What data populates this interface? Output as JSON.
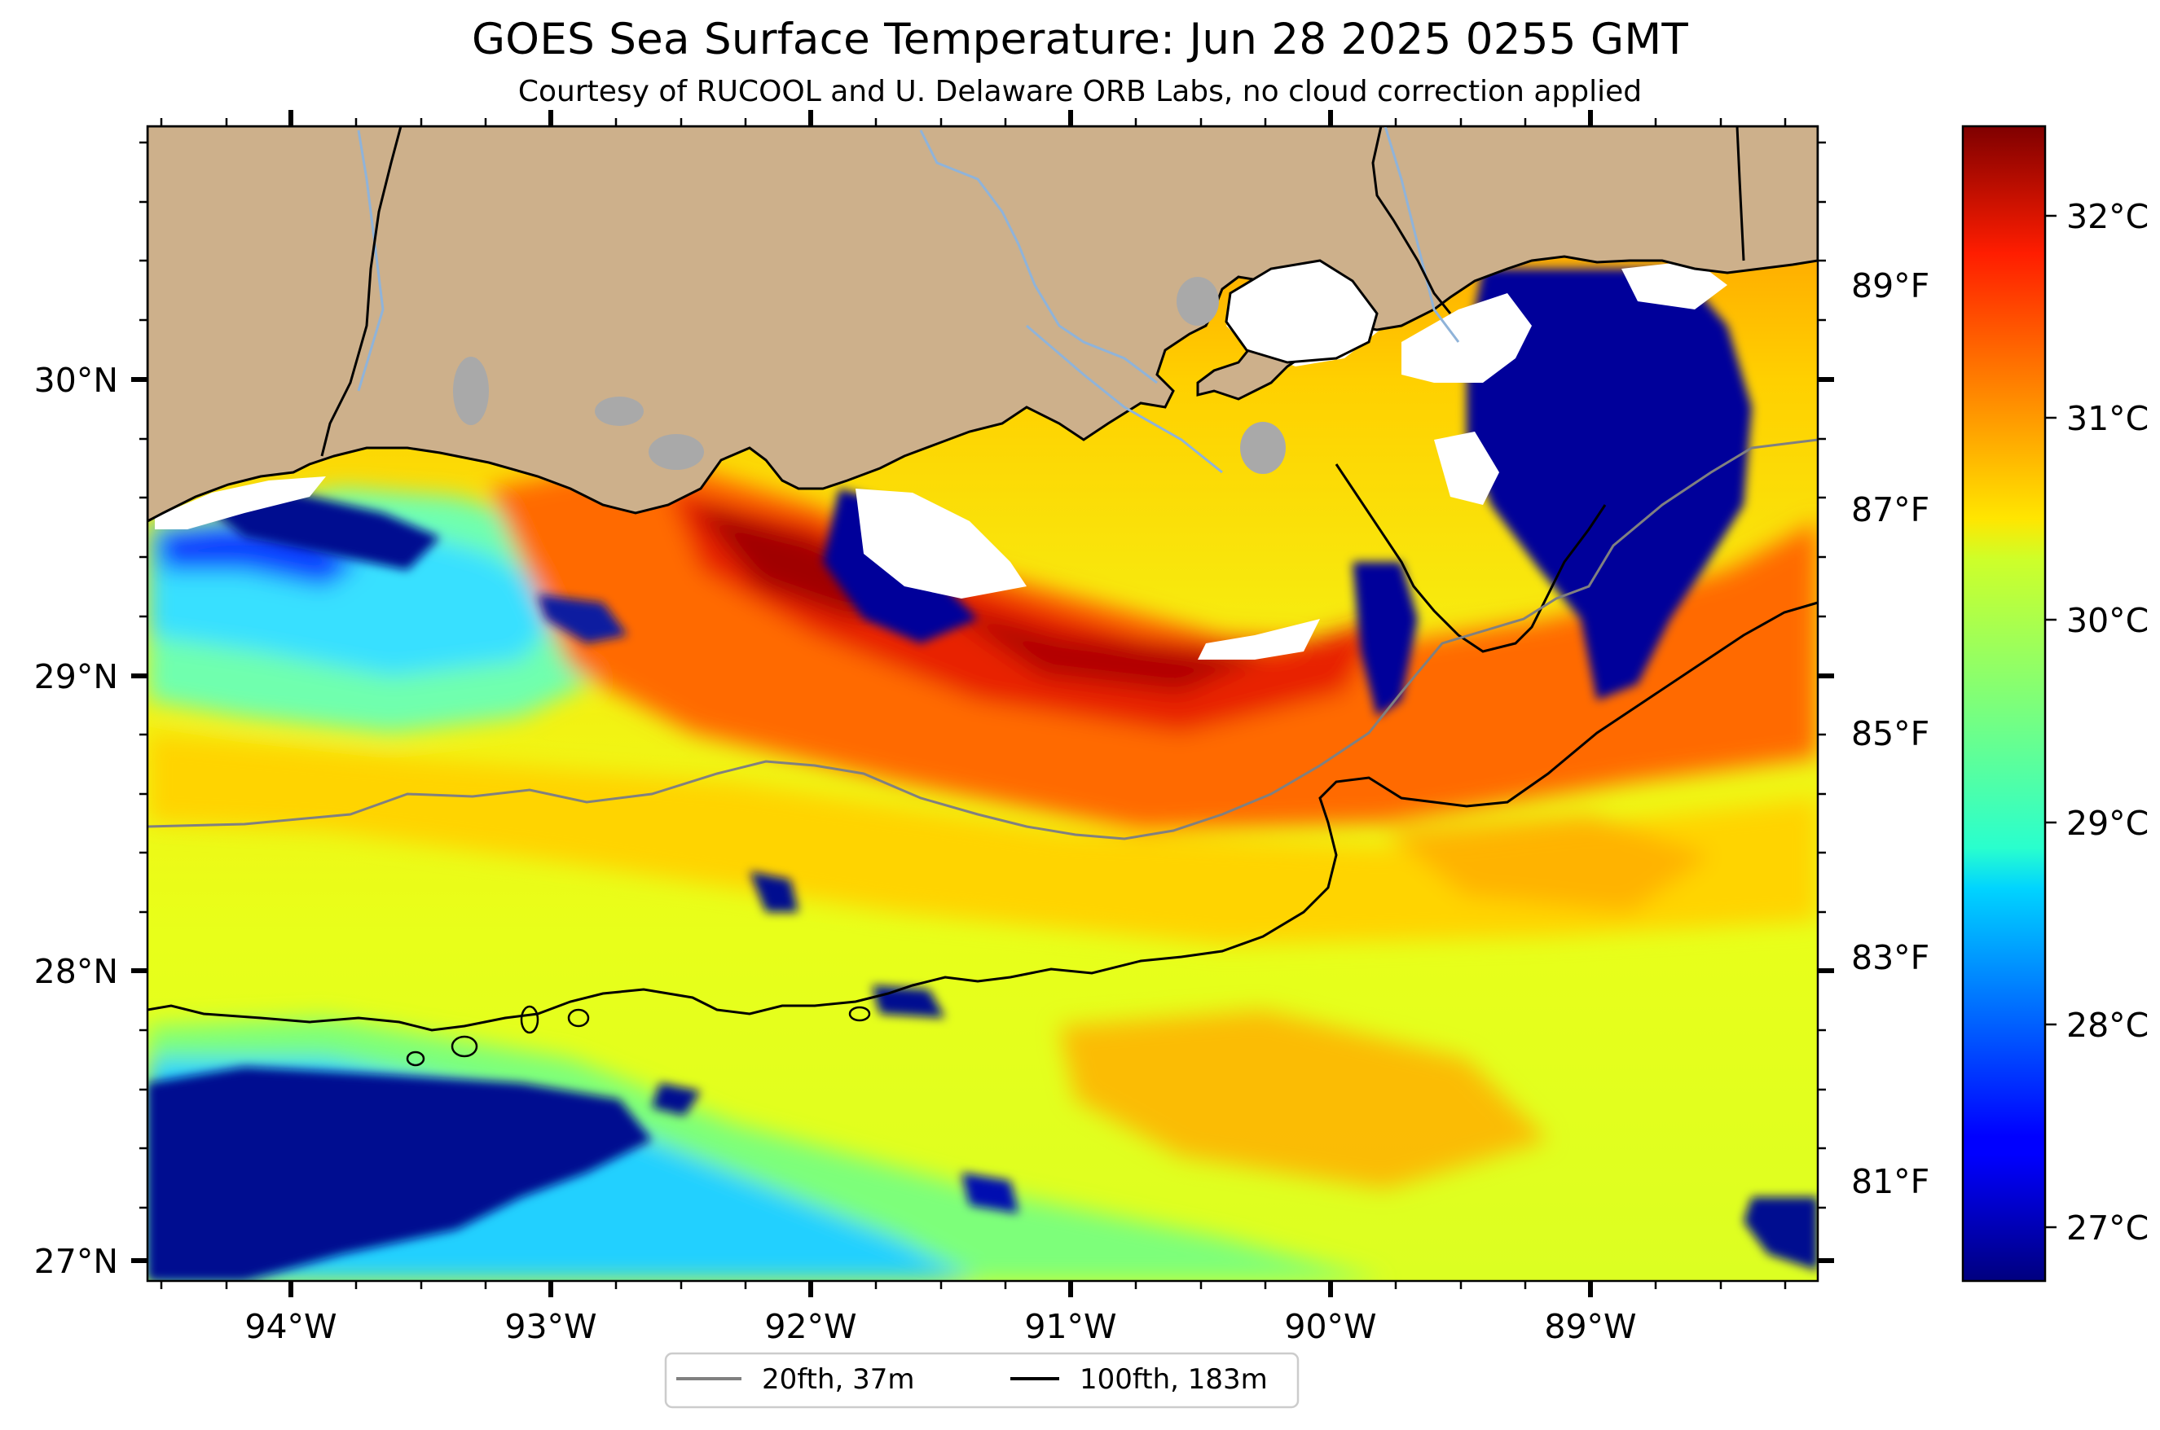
{
  "title": "GOES Sea Surface Temperature: Jun 28 2025 0255 GMT",
  "subtitle": "Courtesy of RUCOOL and U. Delaware ORB Labs, no cloud correction applied",
  "map": {
    "lon_range": [
      -94.55,
      -88.15
    ],
    "lat_range": [
      26.95,
      30.85
    ],
    "lon_ticks": [
      "94°W",
      "93°W",
      "92°W",
      "91°W",
      "90°W",
      "89°W"
    ],
    "lat_ticks": [
      "30°N",
      "29°N",
      "28°N",
      "27°N"
    ],
    "fahrenheit_ticks": [
      "89°F",
      "87°F",
      "85°F",
      "83°F",
      "81°F"
    ],
    "colors": {
      "land": "#cdb08b",
      "cloud_mask": "#ffffff",
      "lakes": "#a9a9a9",
      "rivers": "#8fb3d9"
    }
  },
  "colorbar": {
    "colormap": "jet",
    "range_c": [
      26.6,
      32.5
    ],
    "celsius_ticks": [
      "32°C",
      "31°C",
      "30°C",
      "29°C",
      "28°C",
      "27°C"
    ]
  },
  "legend": {
    "items": [
      {
        "label": "20fth, 37m",
        "color": "#808080"
      },
      {
        "label": "100fth, 183m",
        "color": "#000000"
      }
    ]
  }
}
